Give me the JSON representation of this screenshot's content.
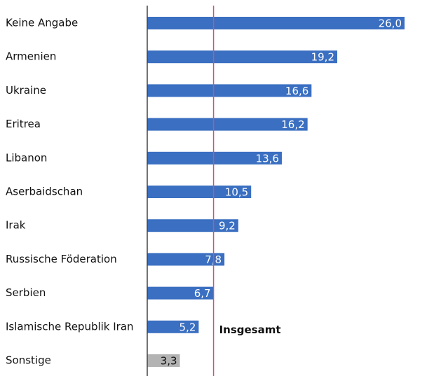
{
  "chart_data": {
    "type": "bar",
    "orientation": "horizontal",
    "categories": [
      "Keine Angabe",
      "Armenien",
      "Ukraine",
      "Eritrea",
      "Libanon",
      "Aserbaidschan",
      "Irak",
      "Russische Föderation",
      "Serbien",
      "Islamische Republik Iran",
      "Sonstige"
    ],
    "values": [
      26.0,
      19.2,
      16.6,
      16.2,
      13.6,
      10.5,
      9.2,
      7.8,
      6.7,
      5.2,
      3.3
    ],
    "value_labels": [
      "26,0",
      "19,2",
      "16,6",
      "16,2",
      "13,6",
      "10,5",
      "9,2",
      "7,8",
      "6,7",
      "5,2",
      "3,3"
    ],
    "colors": [
      "#3a6fc1",
      "#3a6fc1",
      "#3a6fc1",
      "#3a6fc1",
      "#3a6fc1",
      "#3a6fc1",
      "#3a6fc1",
      "#3a6fc1",
      "#3a6fc1",
      "#3a6fc1",
      "#b3b3b3"
    ],
    "xlim": [
      0,
      26
    ],
    "reference_line": {
      "value": 6.7,
      "label": "Insgesamt",
      "color": "#c8557a"
    }
  }
}
